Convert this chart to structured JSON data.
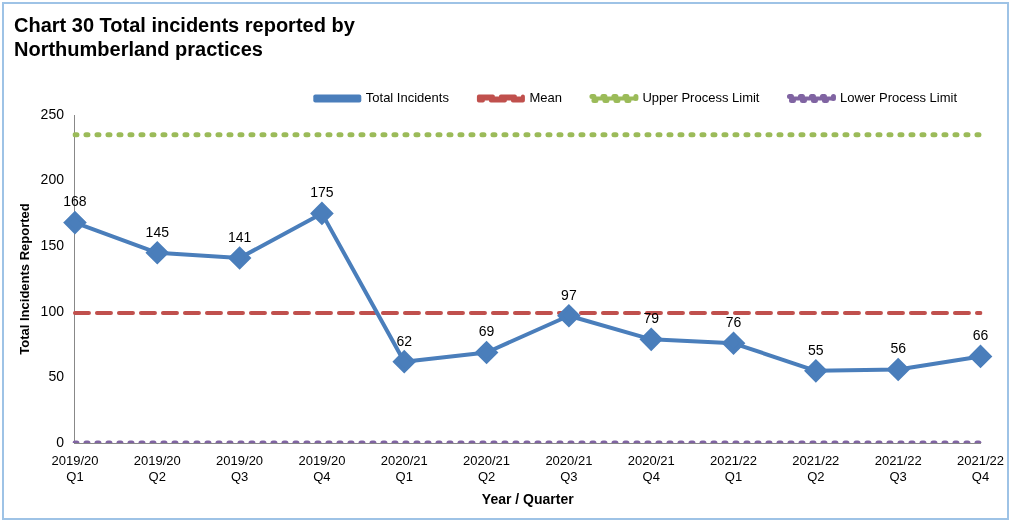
{
  "chart_data": {
    "type": "line",
    "title": "Chart 30 Total incidents reported by\nNorthumberland practices",
    "xlabel": "Year / Quarter",
    "ylabel": "Total Incidents Reported",
    "categories": [
      "2019/20\nQ1",
      "2019/20\nQ2",
      "2019/20\nQ3",
      "2019/20\nQ4",
      "2020/21\nQ1",
      "2020/21\nQ2",
      "2020/21\nQ3",
      "2020/21\nQ4",
      "2021/22\nQ1",
      "2021/22\nQ2",
      "2021/22\nQ3",
      "2021/22\nQ4"
    ],
    "series": [
      {
        "name": "Total Incidents",
        "color": "#4a7ebb",
        "marker": "diamond",
        "line_style": "solid",
        "values": [
          168,
          145,
          141,
          175,
          62,
          69,
          97,
          79,
          76,
          55,
          56,
          66
        ],
        "value_labels": [
          "168",
          "145",
          "141",
          "175",
          "62",
          "69",
          "97",
          "79",
          "76",
          "55",
          "56",
          "66"
        ]
      },
      {
        "name": "Mean",
        "color": "#c0504d",
        "marker": "none",
        "line_style": "dashed",
        "values": [
          99,
          99,
          99,
          99,
          99,
          99,
          99,
          99,
          99,
          99,
          99,
          99
        ]
      },
      {
        "name": "Upper Process Limit",
        "color": "#9bbb59",
        "marker": "none",
        "line_style": "dotted",
        "values": [
          235,
          235,
          235,
          235,
          235,
          235,
          235,
          235,
          235,
          235,
          235,
          235
        ]
      },
      {
        "name": "Lower Process Limit",
        "color": "#8064a2",
        "marker": "none",
        "line_style": "dotted",
        "values": [
          0,
          0,
          0,
          0,
          0,
          0,
          0,
          0,
          0,
          0,
          0,
          0
        ]
      }
    ],
    "ylim": [
      0,
      250
    ],
    "yticks": [
      0,
      50,
      100,
      150,
      200,
      250
    ],
    "grid": false,
    "legend": "top right"
  }
}
